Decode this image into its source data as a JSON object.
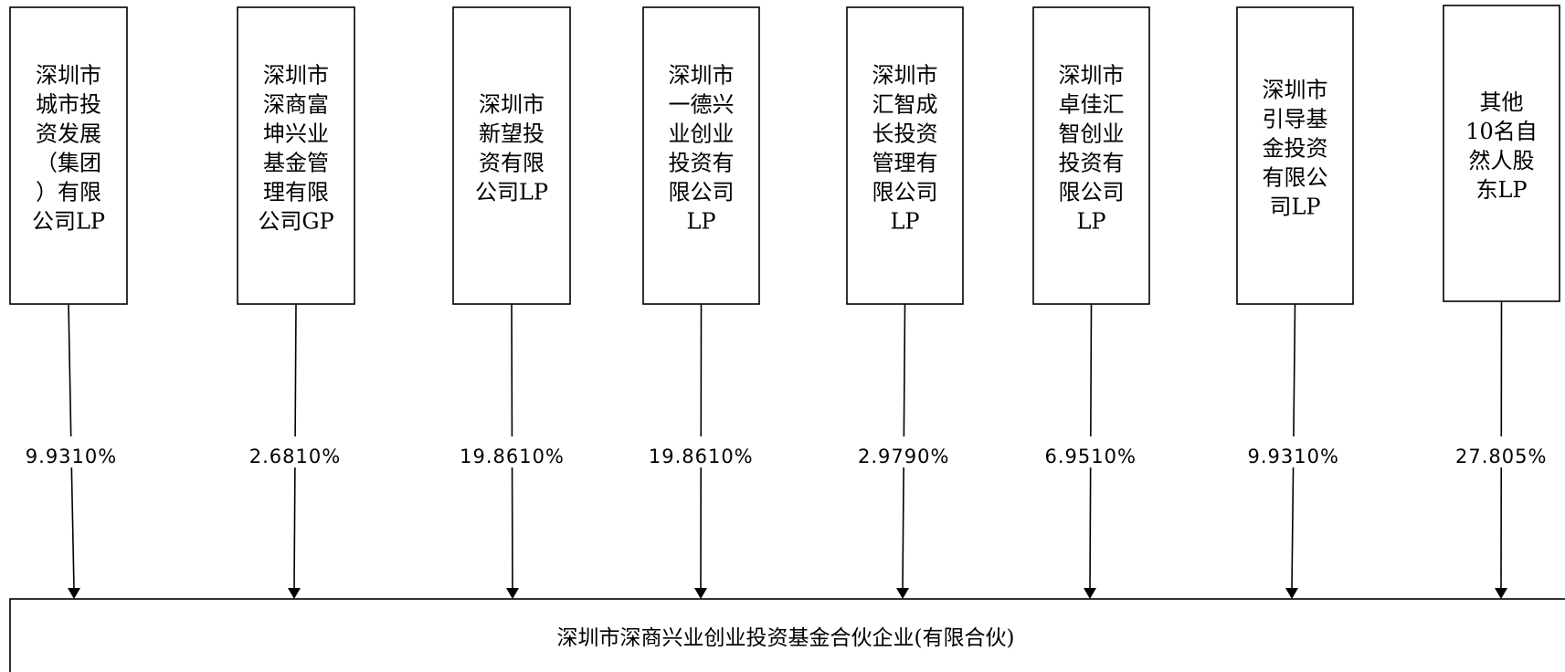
{
  "shareholders": [
    {
      "lines": [
        "深圳市",
        "城市投",
        "资发展",
        "（集团",
        "）有限",
        "公司LP"
      ],
      "percentage": "9.9310%"
    },
    {
      "lines": [
        "深圳市",
        "深商富",
        "坤兴业",
        "基金管",
        "理有限",
        "公司GP"
      ],
      "percentage": "2.6810%"
    },
    {
      "lines": [
        "深圳市",
        "新望投",
        "资有限",
        "公司LP"
      ],
      "percentage": "19.8610%"
    },
    {
      "lines": [
        "深圳市",
        "一德兴",
        "业创业",
        "投资有",
        "限公司",
        "LP"
      ],
      "percentage": "19.8610%"
    },
    {
      "lines": [
        "深圳市",
        "汇智成",
        "长投资",
        "管理有",
        "限公司",
        "LP"
      ],
      "percentage": "2.9790%"
    },
    {
      "lines": [
        "深圳市",
        "卓佳汇",
        "智创业",
        "投资有",
        "限公司",
        "LP"
      ],
      "percentage": "6.9510%"
    },
    {
      "lines": [
        "深圳市",
        "引导基",
        "金投资",
        "有限公",
        "司LP"
      ],
      "percentage": "9.9310%"
    },
    {
      "lines": [
        "其他",
        "10名自",
        "然人股",
        "东LP"
      ],
      "percentage": "27.805%"
    }
  ],
  "target": {
    "name": "深圳市深商兴业创业投资基金合伙企业(有限合伙)"
  }
}
